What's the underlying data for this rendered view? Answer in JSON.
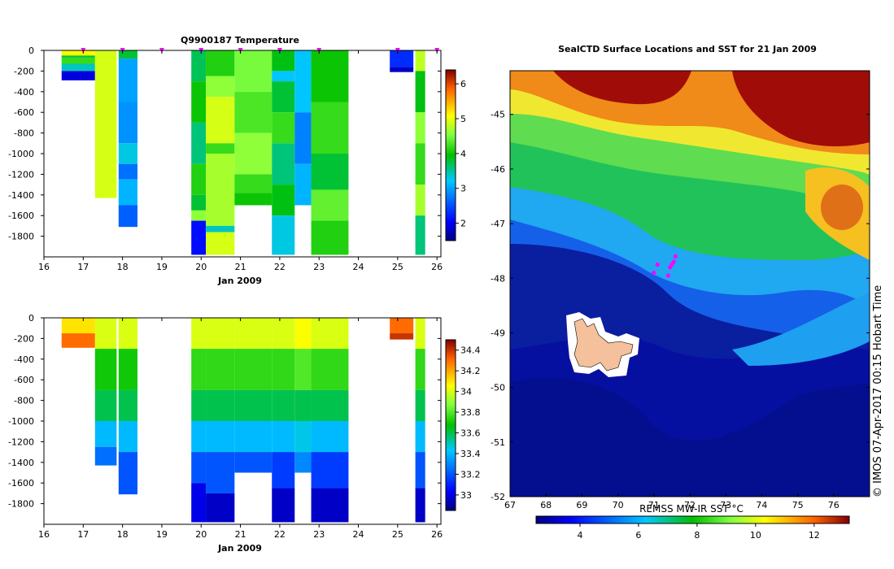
{
  "chart_data": [
    {
      "type": "heatmap",
      "title": "Q9900187  Temperature",
      "xlabel": "Jan 2009",
      "ylabel": "",
      "xlim": [
        16,
        26.1
      ],
      "ylim": [
        -2000,
        0
      ],
      "xticks": [
        16,
        17,
        18,
        19,
        20,
        21,
        22,
        23,
        24,
        25,
        26
      ],
      "yticks": [
        0,
        -200,
        -400,
        -600,
        -800,
        -1000,
        -1200,
        -1400,
        -1600,
        -1800
      ],
      "colorbar": {
        "min": 1.5,
        "max": 6.4,
        "ticks": [
          2,
          3,
          4,
          5,
          6
        ]
      },
      "profile_marker_days": [
        17.0,
        18.0,
        19.0,
        20.0,
        21.0,
        22.0,
        23.0,
        25.0,
        26.0
      ],
      "columns": [
        {
          "x0": 16.45,
          "x1": 17.3,
          "bottom": -290,
          "segments": [
            [
              0,
              -50,
              5.1
            ],
            [
              -50,
              -70,
              3.8
            ],
            [
              -70,
              -130,
              4.2
            ],
            [
              -130,
              -200,
              3.4
            ],
            [
              -200,
              -290,
              1.9
            ]
          ]
        },
        {
          "x0": 17.3,
          "x1": 17.85,
          "bottom": -1430,
          "segments": [
            [
              0,
              -1430,
              4.9
            ]
          ]
        },
        {
          "x0": 17.9,
          "x1": 18.38,
          "bottom": -1710,
          "segments": [
            [
              0,
              -80,
              3.8
            ],
            [
              -80,
              -500,
              3.0
            ],
            [
              -500,
              -900,
              2.9
            ],
            [
              -900,
              -1100,
              3.3
            ],
            [
              -1100,
              -1250,
              2.7
            ],
            [
              -1250,
              -1500,
              3.1
            ],
            [
              -1500,
              -1710,
              2.6
            ]
          ]
        },
        {
          "x0": 19.75,
          "x1": 20.12,
          "bottom": -1980,
          "segments": [
            [
              0,
              -300,
              3.7
            ],
            [
              -300,
              -700,
              4.0
            ],
            [
              -700,
              -1100,
              3.6
            ],
            [
              -1100,
              -1400,
              4.1
            ],
            [
              -1400,
              -1550,
              3.8
            ],
            [
              -1550,
              -1650,
              4.6
            ],
            [
              -1650,
              -1980,
              2.1
            ]
          ]
        },
        {
          "x0": 20.12,
          "x1": 20.85,
          "bottom": -1980,
          "segments": [
            [
              0,
              -250,
              4.1
            ],
            [
              -250,
              -450,
              4.6
            ],
            [
              -450,
              -900,
              4.9
            ],
            [
              -900,
              -1000,
              4.2
            ],
            [
              -1000,
              -1700,
              4.7
            ],
            [
              -1700,
              -1760,
              3.4
            ],
            [
              -1760,
              -1980,
              4.9
            ]
          ]
        },
        {
          "x0": 20.85,
          "x1": 21.8,
          "bottom": -1500,
          "segments": [
            [
              0,
              -400,
              4.5
            ],
            [
              -400,
              -800,
              4.3
            ],
            [
              -800,
              -1200,
              4.6
            ],
            [
              -1200,
              -1380,
              4.2
            ],
            [
              -1380,
              -1500,
              4.0
            ]
          ]
        },
        {
          "x0": 21.8,
          "x1": 22.38,
          "bottom": -1980,
          "segments": [
            [
              0,
              -200,
              3.9
            ],
            [
              -200,
              -300,
              3.2
            ],
            [
              -300,
              -600,
              3.8
            ],
            [
              -600,
              -900,
              4.2
            ],
            [
              -900,
              -1300,
              3.6
            ],
            [
              -1300,
              -1600,
              3.9
            ],
            [
              -1600,
              -1980,
              3.3
            ]
          ]
        },
        {
          "x0": 22.38,
          "x1": 22.8,
          "bottom": -1500,
          "segments": [
            [
              0,
              -600,
              3.2
            ],
            [
              -600,
              -1100,
              2.8
            ],
            [
              -1100,
              -1500,
              3.1
            ]
          ]
        },
        {
          "x0": 22.8,
          "x1": 23.75,
          "bottom": -1980,
          "segments": [
            [
              0,
              -500,
              4.0
            ],
            [
              -500,
              -1000,
              4.2
            ],
            [
              -1000,
              -1350,
              3.8
            ],
            [
              -1350,
              -1650,
              4.4
            ],
            [
              -1650,
              -1980,
              4.1
            ]
          ]
        },
        {
          "x0": 24.8,
          "x1": 25.4,
          "bottom": -210,
          "segments": [
            [
              0,
              -160,
              2.3
            ],
            [
              -160,
              -210,
              1.8
            ]
          ]
        },
        {
          "x0": 25.45,
          "x1": 25.7,
          "bottom": -1980,
          "segments": [
            [
              0,
              -200,
              4.8
            ],
            [
              -200,
              -600,
              3.9
            ],
            [
              -600,
              -900,
              4.6
            ],
            [
              -900,
              -1300,
              4.2
            ],
            [
              -1300,
              -1600,
              4.7
            ],
            [
              -1600,
              -1980,
              3.6
            ]
          ]
        }
      ]
    },
    {
      "type": "heatmap",
      "title": "",
      "xlabel": "Jan 2009",
      "ylabel": "",
      "xlim": [
        16,
        26.1
      ],
      "ylim": [
        -2000,
        0
      ],
      "xticks": [
        16,
        17,
        18,
        19,
        20,
        21,
        22,
        23,
        24,
        25,
        26
      ],
      "yticks": [
        0,
        -200,
        -400,
        -600,
        -800,
        -1000,
        -1200,
        -1400,
        -1600,
        -1800
      ],
      "colorbar": {
        "min": 32.85,
        "max": 34.5,
        "ticks": [
          33,
          33.2,
          33.4,
          33.6,
          33.8,
          34,
          34.2,
          34.4
        ]
      },
      "columns": [
        {
          "x0": 16.45,
          "x1": 17.3,
          "bottom": -290,
          "segments": [
            [
              0,
              -150,
              34.1
            ],
            [
              -150,
              -290,
              34.3
            ]
          ]
        },
        {
          "x0": 17.3,
          "x1": 17.85,
          "bottom": -1430,
          "segments": [
            [
              0,
              -300,
              34.0
            ],
            [
              -300,
              -700,
              33.7
            ],
            [
              -700,
              -1000,
              33.6
            ],
            [
              -1000,
              -1250,
              33.4
            ],
            [
              -1250,
              -1430,
              33.25
            ]
          ]
        },
        {
          "x0": 17.9,
          "x1": 18.38,
          "bottom": -1710,
          "segments": [
            [
              0,
              -300,
              34.0
            ],
            [
              -300,
              -700,
              33.7
            ],
            [
              -700,
              -1000,
              33.6
            ],
            [
              -1000,
              -1300,
              33.4
            ],
            [
              -1300,
              -1710,
              33.2
            ]
          ]
        },
        {
          "x0": 19.75,
          "x1": 20.12,
          "bottom": -1980,
          "segments": [
            [
              0,
              -300,
              34.0
            ],
            [
              -300,
              -700,
              33.75
            ],
            [
              -700,
              -1000,
              33.6
            ],
            [
              -1000,
              -1300,
              33.4
            ],
            [
              -1300,
              -1600,
              33.2
            ],
            [
              -1600,
              -1980,
              33.0
            ]
          ]
        },
        {
          "x0": 20.12,
          "x1": 20.85,
          "bottom": -1980,
          "segments": [
            [
              0,
              -300,
              34.0
            ],
            [
              -300,
              -700,
              33.75
            ],
            [
              -700,
              -1000,
              33.6
            ],
            [
              -1000,
              -1300,
              33.4
            ],
            [
              -1300,
              -1700,
              33.2
            ],
            [
              -1700,
              -1980,
              32.95
            ]
          ]
        },
        {
          "x0": 20.85,
          "x1": 21.8,
          "bottom": -1500,
          "segments": [
            [
              0,
              -300,
              34.0
            ],
            [
              -300,
              -700,
              33.75
            ],
            [
              -700,
              -1000,
              33.6
            ],
            [
              -1000,
              -1300,
              33.4
            ],
            [
              -1300,
              -1500,
              33.2
            ]
          ]
        },
        {
          "x0": 21.8,
          "x1": 22.38,
          "bottom": -1980,
          "segments": [
            [
              0,
              -300,
              34.0
            ],
            [
              -300,
              -700,
              33.75
            ],
            [
              -700,
              -1000,
              33.6
            ],
            [
              -1000,
              -1300,
              33.4
            ],
            [
              -1300,
              -1650,
              33.15
            ],
            [
              -1650,
              -1980,
              32.95
            ]
          ]
        },
        {
          "x0": 22.38,
          "x1": 22.8,
          "bottom": -1500,
          "segments": [
            [
              0,
              -300,
              34.05
            ],
            [
              -300,
              -700,
              33.8
            ],
            [
              -700,
              -1000,
              33.6
            ],
            [
              -1000,
              -1300,
              33.45
            ],
            [
              -1300,
              -1500,
              33.3
            ]
          ]
        },
        {
          "x0": 22.8,
          "x1": 23.75,
          "bottom": -1980,
          "segments": [
            [
              0,
              -300,
              34.0
            ],
            [
              -300,
              -700,
              33.75
            ],
            [
              -700,
              -1000,
              33.6
            ],
            [
              -1000,
              -1300,
              33.4
            ],
            [
              -1300,
              -1650,
              33.15
            ],
            [
              -1650,
              -1980,
              32.95
            ]
          ]
        },
        {
          "x0": 24.8,
          "x1": 25.4,
          "bottom": -210,
          "segments": [
            [
              0,
              -150,
              34.3
            ],
            [
              -150,
              -210,
              34.4
            ]
          ]
        },
        {
          "x0": 25.45,
          "x1": 25.7,
          "bottom": -1980,
          "segments": [
            [
              0,
              -300,
              34.0
            ],
            [
              -300,
              -700,
              33.75
            ],
            [
              -700,
              -1000,
              33.6
            ],
            [
              -1000,
              -1300,
              33.4
            ],
            [
              -1300,
              -1650,
              33.2
            ],
            [
              -1650,
              -1980,
              32.95
            ]
          ]
        }
      ]
    },
    {
      "type": "heatmap",
      "title": "SealCTD Surface Locations and SST for 21 Jan 2009",
      "xlabel": "REMSS MW-IR SST °C",
      "ylabel": "",
      "xlim": [
        67,
        77
      ],
      "ylim": [
        -52,
        -44.2
      ],
      "xticks": [
        67,
        68,
        69,
        70,
        71,
        72,
        73,
        74,
        75,
        76
      ],
      "yticks": [
        -45,
        -46,
        -47,
        -48,
        -49,
        -50,
        -51,
        -52
      ],
      "colorbar": {
        "min": 2.5,
        "max": 13.2,
        "ticks": [
          4,
          6,
          8,
          10,
          12
        ]
      },
      "surface_locations": [
        {
          "lon": 71.4,
          "lat": -47.95
        },
        {
          "lon": 71.45,
          "lat": -47.8
        },
        {
          "lon": 71.55,
          "lat": -47.7
        },
        {
          "lon": 71.6,
          "lat": -47.6
        },
        {
          "lon": 71.5,
          "lat": -47.75
        },
        {
          "lon": 71.0,
          "lat": -47.9
        },
        {
          "lon": 71.1,
          "lat": -47.75
        }
      ],
      "land_mask": "Kerguelen Islands"
    }
  ],
  "credit": "© IMOS 07-Apr-2017 00:15 Hobart Time"
}
